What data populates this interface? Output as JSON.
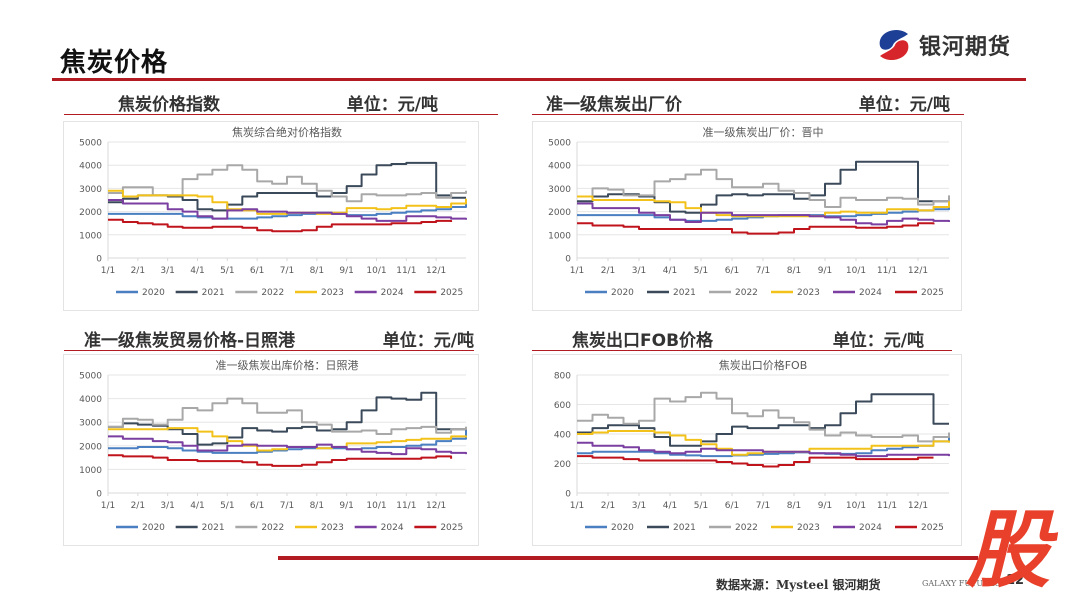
{
  "header": {
    "title": "焦炭价格",
    "logo_text": "银河期货"
  },
  "panels": [
    {
      "heading": "焦炭价格指数",
      "unit": "单位：元/吨"
    },
    {
      "heading": "准一级焦炭出厂价",
      "unit": "单位：元/吨"
    },
    {
      "heading": "准一级焦炭贸易价格-日照港",
      "unit": "单位：元/吨"
    },
    {
      "heading": "焦炭出口FOB价格",
      "unit": "单位：元/吨"
    }
  ],
  "footer": {
    "source": "数据来源：Mysteel 银河期货",
    "galaxy": "GALAXY FUTURES",
    "page": "12",
    "stamp": "股"
  },
  "colors": {
    "accent": "#b31b22",
    "2020": "#4a7fc1",
    "2021": "#3b4a5a",
    "2022": "#a8a8a8",
    "2023": "#f2c21b",
    "2024": "#7a3fa0",
    "2025": "#c0141c"
  },
  "chart_data": [
    {
      "type": "line",
      "title": "焦炭综合绝对价格指数",
      "xlabel": "",
      "ylabel": "",
      "ylim": [
        0,
        5000
      ],
      "yticks": [
        "0",
        "1000",
        "2000",
        "3000",
        "4000",
        "5000"
      ],
      "categories": [
        "1/1",
        "2/1",
        "3/1",
        "4/1",
        "5/1",
        "6/1",
        "7/1",
        "8/1",
        "9/1",
        "10/1",
        "11/1",
        "12/1"
      ],
      "grid": true,
      "legend": "bottom",
      "x": [
        0,
        0.5,
        1,
        1.5,
        2,
        2.5,
        3,
        3.5,
        4,
        4.5,
        5,
        5.5,
        6,
        6.5,
        7,
        7.5,
        8,
        8.5,
        9,
        9.5,
        10,
        10.5,
        11,
        11.5,
        12
      ],
      "series": [
        {
          "name": "2020",
          "values": [
            1900,
            1900,
            1900,
            1900,
            1900,
            1800,
            1750,
            1700,
            1700,
            1700,
            1750,
            1800,
            1850,
            1900,
            1950,
            1900,
            1850,
            1850,
            1900,
            1950,
            2000,
            2050,
            2100,
            2200,
            2350
          ]
        },
        {
          "name": "2021",
          "values": [
            2400,
            2550,
            2700,
            2700,
            2650,
            2500,
            2100,
            2050,
            2300,
            2650,
            2800,
            2800,
            2800,
            2800,
            2650,
            2800,
            3100,
            3600,
            4000,
            4050,
            4100,
            4100,
            2700,
            2600,
            2600
          ]
        },
        {
          "name": "2022",
          "values": [
            2800,
            3050,
            3050,
            2700,
            2700,
            3400,
            3600,
            3800,
            4000,
            3800,
            3300,
            3200,
            3500,
            3200,
            2900,
            2650,
            2450,
            2750,
            2700,
            2700,
            2750,
            2800,
            2600,
            2800,
            2900
          ]
        },
        {
          "name": "2023",
          "values": [
            2900,
            2650,
            2700,
            2700,
            2700,
            2700,
            2650,
            2400,
            2100,
            2050,
            1900,
            1900,
            1950,
            1950,
            1900,
            1950,
            2150,
            2150,
            2100,
            2150,
            2250,
            2250,
            2200,
            2350,
            2550
          ]
        },
        {
          "name": "2024",
          "values": [
            2500,
            2350,
            2350,
            2350,
            2100,
            2000,
            1800,
            1700,
            2050,
            2100,
            2000,
            2000,
            1950,
            1950,
            1950,
            1900,
            1800,
            1700,
            1600,
            1600,
            1800,
            1800,
            1750,
            1700,
            1650
          ]
        },
        {
          "name": "2025",
          "values": [
            1650,
            1550,
            1500,
            1450,
            1350,
            1300,
            1300,
            1350,
            1350,
            1300,
            1200,
            1150,
            1150,
            1200,
            1350,
            1450,
            1450,
            1450,
            1450,
            1500,
            1500,
            1550,
            1600,
            1550,
            null
          ]
        }
      ]
    },
    {
      "type": "line",
      "title": "准一级焦炭出厂价：晋中",
      "xlabel": "",
      "ylabel": "",
      "ylim": [
        0,
        5000
      ],
      "yticks": [
        "0",
        "1000",
        "2000",
        "3000",
        "4000",
        "5000"
      ],
      "categories": [
        "1/1",
        "2/1",
        "3/1",
        "4/1",
        "5/1",
        "6/1",
        "7/1",
        "8/1",
        "9/1",
        "10/1",
        "11/1",
        "12/1"
      ],
      "grid": true,
      "legend": "bottom",
      "x": [
        0,
        0.5,
        1,
        1.5,
        2,
        2.5,
        3,
        3.5,
        4,
        4.5,
        5,
        5.5,
        6,
        6.5,
        7,
        7.5,
        8,
        8.5,
        9,
        9.5,
        10,
        10.5,
        11,
        11.5,
        12
      ],
      "series": [
        {
          "name": "2020",
          "values": [
            1850,
            1850,
            1850,
            1850,
            1850,
            1750,
            1650,
            1600,
            1600,
            1650,
            1700,
            1750,
            1800,
            1850,
            1850,
            1850,
            1800,
            1800,
            1850,
            1900,
            1950,
            2000,
            2050,
            2100,
            2300
          ]
        },
        {
          "name": "2021",
          "values": [
            2450,
            2650,
            2750,
            2750,
            2650,
            2400,
            2000,
            1950,
            2300,
            2700,
            2750,
            2700,
            2750,
            2750,
            2550,
            2700,
            3200,
            3800,
            4150,
            4150,
            4150,
            4150,
            2450,
            2450,
            2600
          ]
        },
        {
          "name": "2022",
          "values": [
            2650,
            3000,
            2950,
            2700,
            2700,
            3300,
            3400,
            3600,
            3800,
            3400,
            3050,
            3050,
            3200,
            2900,
            2800,
            2500,
            2200,
            2600,
            2500,
            2500,
            2600,
            2550,
            2300,
            2450,
            2700
          ]
        },
        {
          "name": "2023",
          "values": [
            2650,
            2500,
            2500,
            2500,
            2500,
            2450,
            2400,
            2150,
            1950,
            1850,
            1800,
            1800,
            1800,
            1800,
            1800,
            1800,
            1950,
            2000,
            1950,
            1950,
            2100,
            2100,
            2050,
            2200,
            2450
          ]
        },
        {
          "name": "2024",
          "values": [
            2350,
            2150,
            2150,
            2150,
            1950,
            1850,
            1650,
            1550,
            1950,
            1950,
            1850,
            1850,
            1850,
            1850,
            1850,
            1800,
            1750,
            1650,
            1500,
            1450,
            1600,
            1700,
            1650,
            1600,
            1550
          ]
        },
        {
          "name": "2025",
          "values": [
            1500,
            1400,
            1400,
            1350,
            1250,
            1250,
            1250,
            1250,
            1250,
            1250,
            1100,
            1050,
            1050,
            1100,
            1250,
            1350,
            1350,
            1350,
            1300,
            1300,
            1350,
            1400,
            1500,
            1450,
            null
          ]
        }
      ]
    },
    {
      "type": "line",
      "title": "准一级焦炭出库价格：日照港",
      "xlabel": "",
      "ylabel": "",
      "ylim": [
        0,
        5000
      ],
      "yticks": [
        "0",
        "1000",
        "2000",
        "3000",
        "4000",
        "5000"
      ],
      "categories": [
        "1/1",
        "2/1",
        "3/1",
        "4/1",
        "5/1",
        "6/1",
        "7/1",
        "8/1",
        "9/1",
        "10/1",
        "11/1",
        "12/1"
      ],
      "grid": true,
      "legend": "bottom",
      "x": [
        0,
        0.5,
        1,
        1.5,
        2,
        2.5,
        3,
        3.5,
        4,
        4.5,
        5,
        5.5,
        6,
        6.5,
        7,
        7.5,
        8,
        8.5,
        9,
        9.5,
        10,
        10.5,
        11,
        11.5,
        12
      ],
      "series": [
        {
          "name": "2020",
          "values": [
            1900,
            1900,
            1950,
            1950,
            1900,
            1800,
            1750,
            1700,
            1700,
            1700,
            1750,
            1800,
            1850,
            1900,
            1900,
            1900,
            1850,
            1900,
            1950,
            1950,
            2000,
            2050,
            2200,
            2300,
            2700
          ]
        },
        {
          "name": "2021",
          "values": [
            2800,
            2950,
            2900,
            2850,
            2700,
            2500,
            2050,
            2100,
            2350,
            2750,
            2650,
            2600,
            2750,
            2800,
            2650,
            2700,
            3000,
            3500,
            4050,
            4000,
            3950,
            4250,
            2700,
            2700,
            2800
          ]
        },
        {
          "name": "2022",
          "values": [
            2800,
            3150,
            3100,
            2900,
            3100,
            3600,
            3500,
            3800,
            4000,
            3800,
            3400,
            3400,
            3500,
            3000,
            2900,
            2600,
            2600,
            2650,
            2500,
            2700,
            2750,
            2800,
            2550,
            2700,
            2800
          ]
        },
        {
          "name": "2023",
          "values": [
            2700,
            2700,
            2700,
            2700,
            2750,
            2750,
            2600,
            2400,
            2200,
            2000,
            1800,
            1850,
            1950,
            1950,
            1900,
            1950,
            2100,
            2100,
            2150,
            2200,
            2250,
            2300,
            2300,
            2400,
            2350
          ]
        },
        {
          "name": "2024",
          "values": [
            2400,
            2300,
            2300,
            2200,
            2150,
            2000,
            1800,
            1800,
            2000,
            2050,
            2000,
            2000,
            1950,
            1950,
            2050,
            1950,
            1850,
            1750,
            1700,
            1650,
            1900,
            1850,
            1750,
            1700,
            1650
          ]
        },
        {
          "name": "2025",
          "values": [
            1600,
            1550,
            1550,
            1500,
            1400,
            1400,
            1350,
            1350,
            1350,
            1300,
            1200,
            1150,
            1150,
            1200,
            1300,
            1400,
            1450,
            1450,
            1450,
            1450,
            1450,
            1500,
            1550,
            1450,
            null
          ]
        }
      ]
    },
    {
      "type": "line",
      "title": "焦炭出口价格FOB",
      "xlabel": "",
      "ylabel": "",
      "ylim": [
        0,
        800
      ],
      "yticks": [
        "0",
        "200",
        "400",
        "600",
        "800"
      ],
      "categories": [
        "1/1",
        "2/1",
        "3/1",
        "4/1",
        "5/1",
        "6/1",
        "7/1",
        "8/1",
        "9/1",
        "10/1",
        "11/1",
        "12/1"
      ],
      "grid": true,
      "legend": "bottom",
      "x": [
        0,
        0.5,
        1,
        1.5,
        2,
        2.5,
        3,
        3.5,
        4,
        4.5,
        5,
        5.5,
        6,
        6.5,
        7,
        7.5,
        8,
        8.5,
        9,
        9.5,
        10,
        10.5,
        11,
        11.5,
        12
      ],
      "series": [
        {
          "name": "2020",
          "values": [
            270,
            280,
            280,
            280,
            280,
            270,
            260,
            255,
            250,
            250,
            255,
            260,
            265,
            270,
            275,
            270,
            265,
            265,
            270,
            290,
            300,
            310,
            320,
            350,
            400
          ]
        },
        {
          "name": "2021",
          "values": [
            410,
            440,
            460,
            460,
            440,
            380,
            320,
            320,
            350,
            400,
            450,
            440,
            440,
            460,
            460,
            440,
            460,
            540,
            620,
            670,
            670,
            670,
            670,
            470,
            470
          ]
        },
        {
          "name": "2022",
          "values": [
            490,
            530,
            510,
            470,
            490,
            640,
            620,
            650,
            680,
            640,
            540,
            520,
            560,
            510,
            480,
            430,
            390,
            410,
            390,
            380,
            380,
            390,
            350,
            380,
            410
          ]
        },
        {
          "name": "2023",
          "values": [
            400,
            410,
            420,
            420,
            420,
            410,
            390,
            360,
            330,
            300,
            260,
            270,
            280,
            280,
            280,
            300,
            300,
            300,
            300,
            320,
            320,
            320,
            320,
            350,
            340
          ]
        },
        {
          "name": "2024",
          "values": [
            340,
            320,
            320,
            310,
            290,
            280,
            270,
            280,
            300,
            290,
            290,
            290,
            280,
            280,
            280,
            270,
            270,
            260,
            250,
            250,
            260,
            260,
            260,
            260,
            250
          ]
        },
        {
          "name": "2025",
          "values": [
            250,
            240,
            240,
            230,
            220,
            220,
            220,
            220,
            220,
            210,
            200,
            190,
            180,
            190,
            210,
            240,
            240,
            240,
            230,
            230,
            230,
            230,
            240,
            240,
            null
          ]
        }
      ]
    }
  ]
}
